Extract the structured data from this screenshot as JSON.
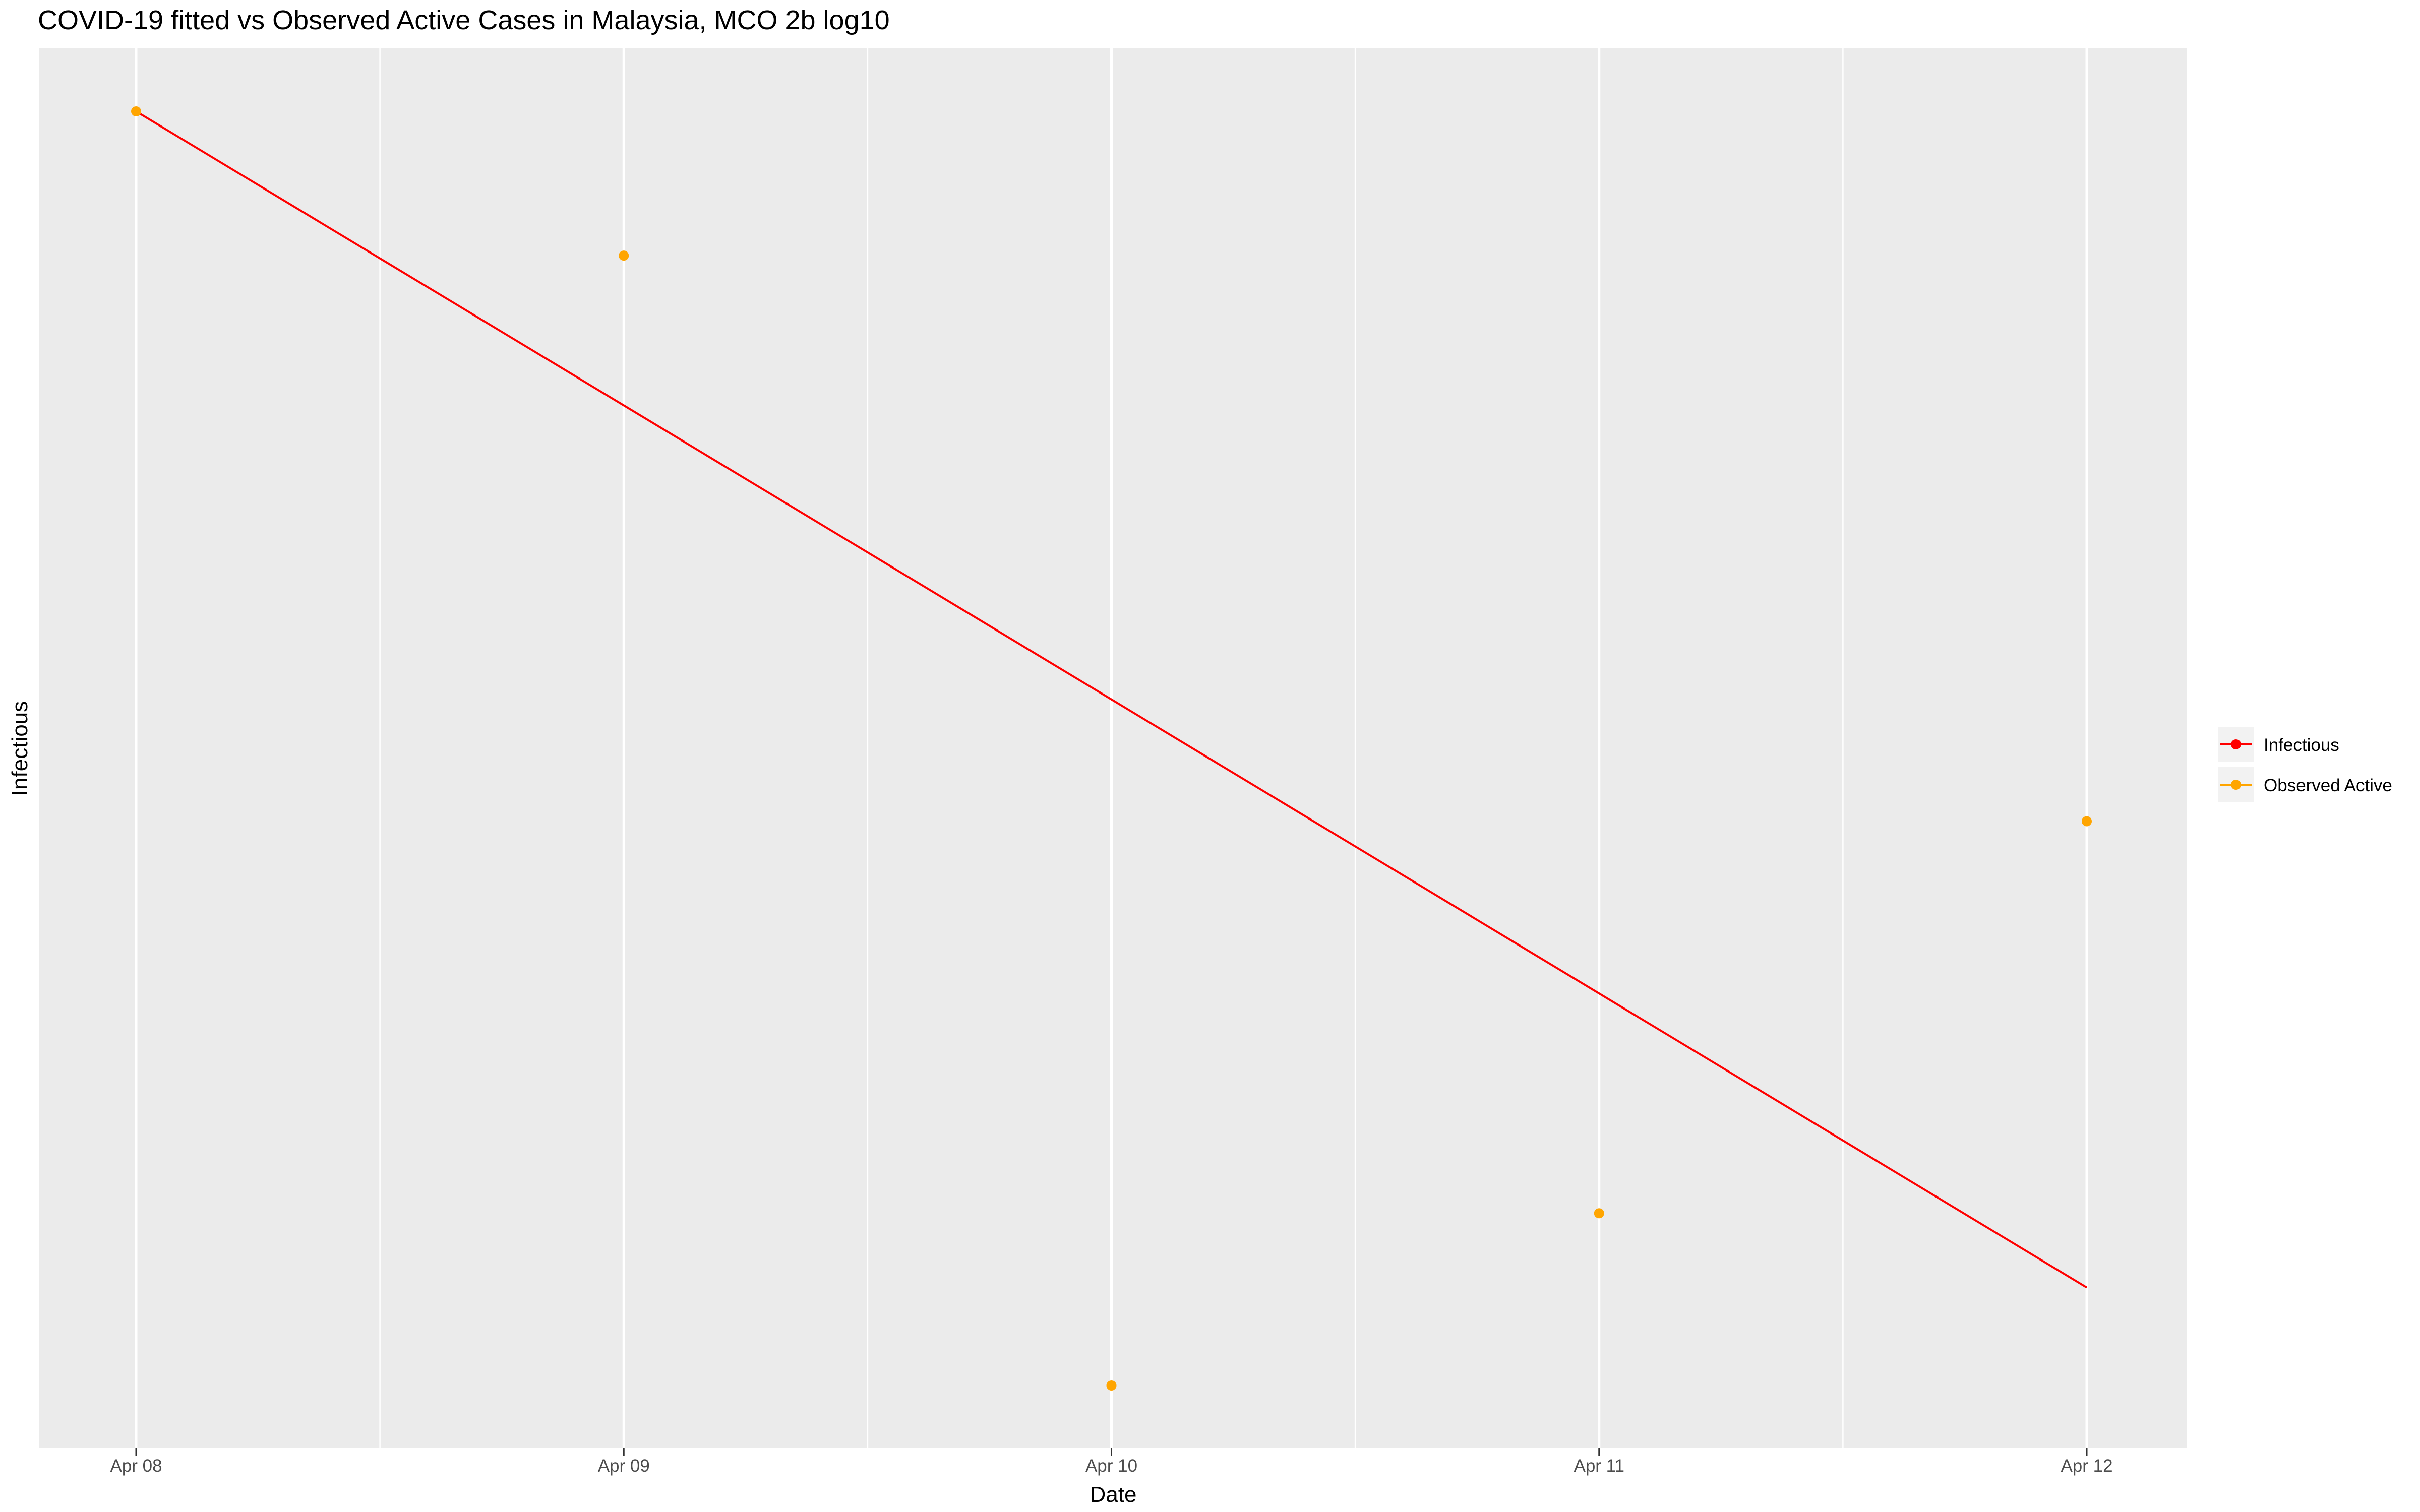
{
  "chart_data": {
    "type": "line",
    "title": "COVID-19 fitted vs Observed Active Cases in Malaysia, MCO 2b log10",
    "xlabel": "Date",
    "ylabel": "Infectious",
    "x": [
      "Apr 08",
      "Apr 09",
      "Apr 10",
      "Apr 11",
      "Apr 12"
    ],
    "x_tick_labels": [
      "Apr 08",
      "Apr 09",
      "Apr 10",
      "Apr 11",
      "Apr 12"
    ],
    "y_tick_labels_shown": false,
    "ylim": [
      0,
      1
    ],
    "grid": true,
    "legend_position": "right",
    "series": [
      {
        "name": "Infectious",
        "kind": "line",
        "color": "#ff0000",
        "values": [
          0.955,
          0.745,
          0.535,
          0.325,
          0.115
        ]
      },
      {
        "name": "Observed Active",
        "kind": "points",
        "color": "#ffa500",
        "values": [
          0.955,
          0.852,
          0.045,
          0.168,
          0.448
        ]
      }
    ]
  },
  "colors": {
    "panel_background": "#ebebeb",
    "gridline": "#ffffff"
  }
}
